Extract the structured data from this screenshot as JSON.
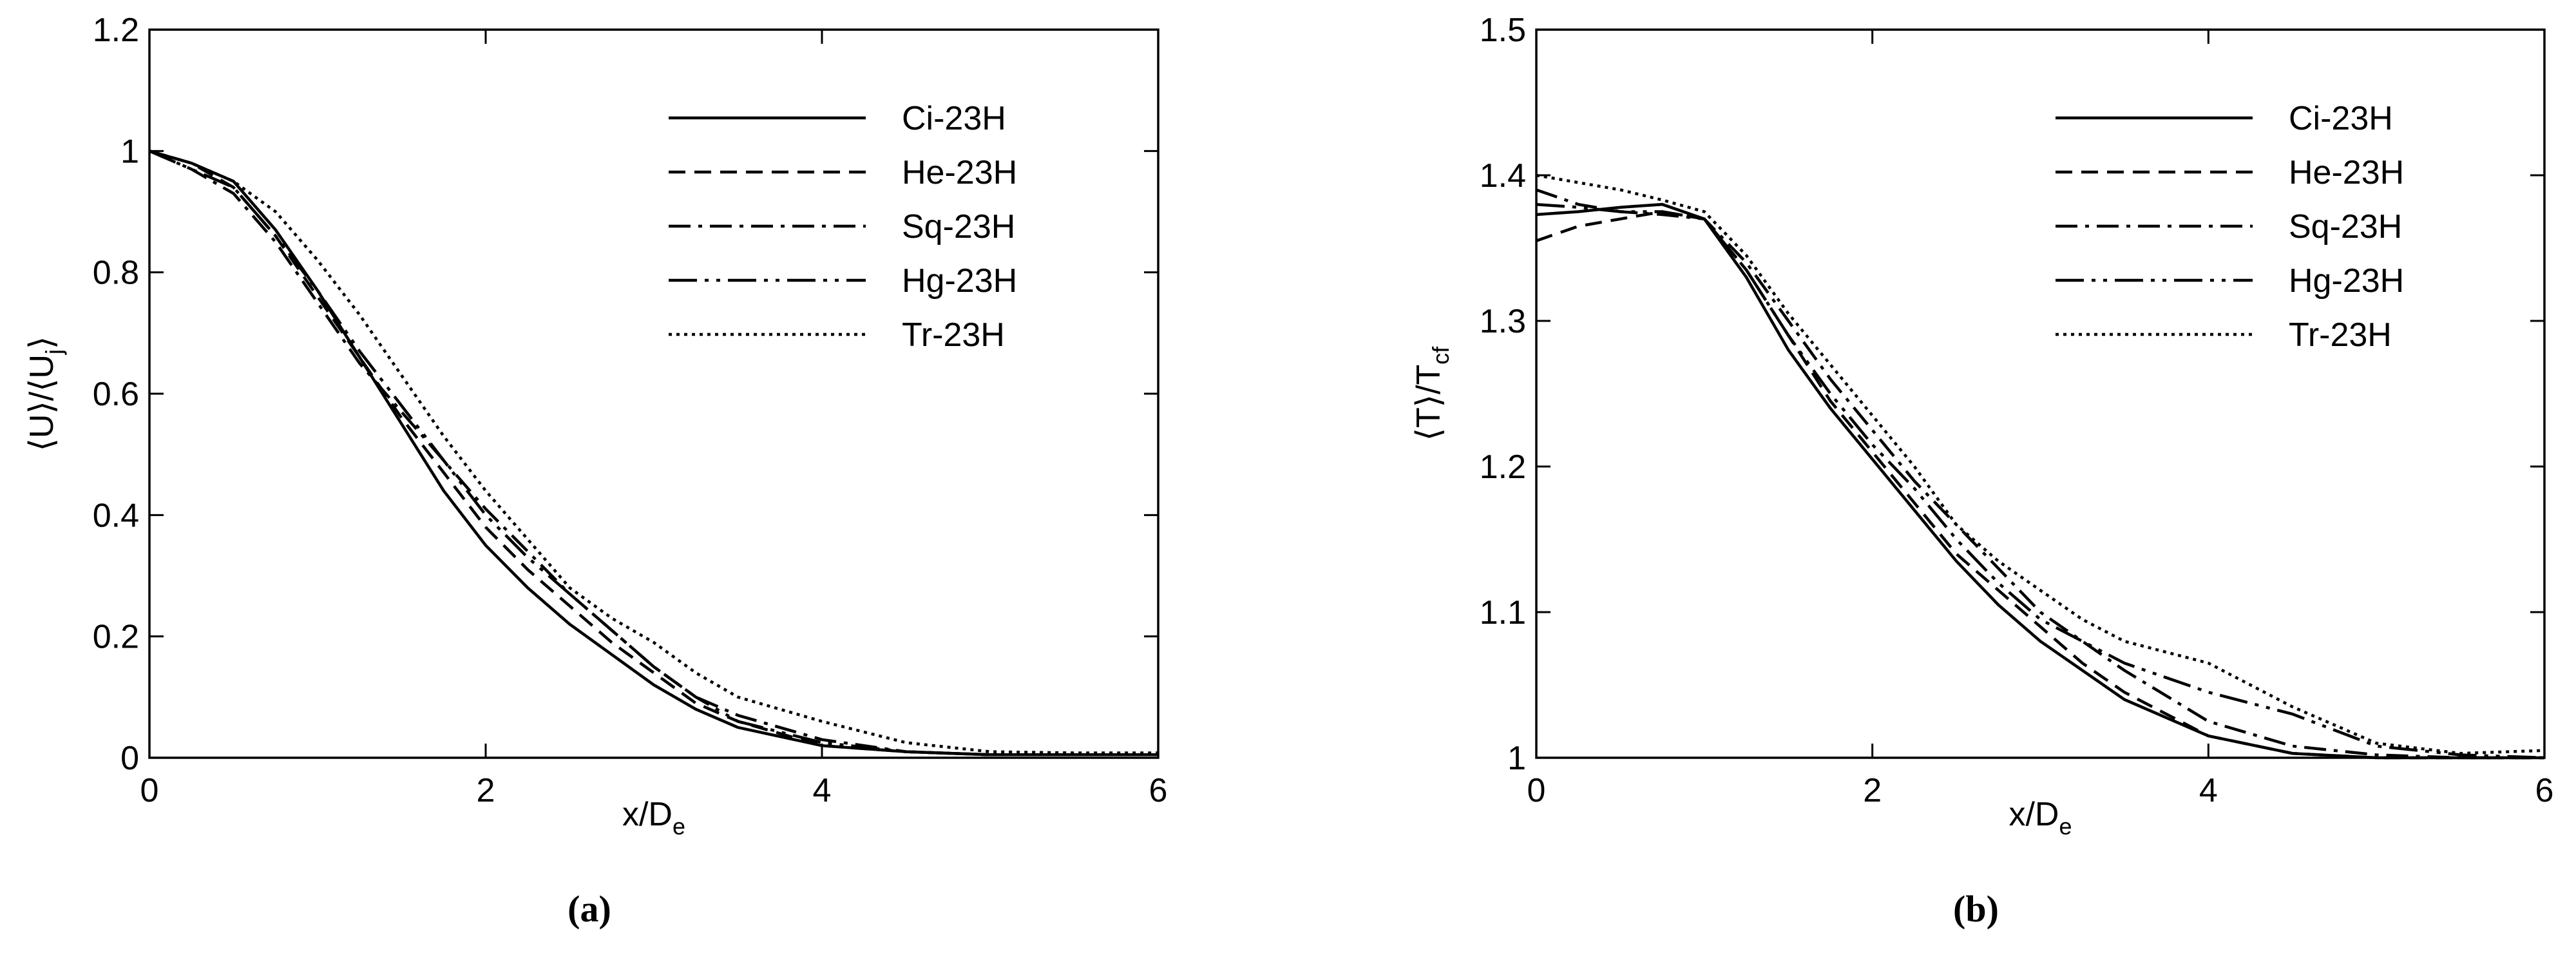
{
  "chart_data": [
    {
      "type": "line",
      "caption": "(a)",
      "xlabel": [
        {
          "text": "x/D"
        },
        {
          "text": "e",
          "sub": true
        }
      ],
      "ylabel": [
        {
          "text": "⟨U⟩/⟨U"
        },
        {
          "text": "j",
          "sub": true
        },
        {
          "text": "⟩"
        }
      ],
      "xlim": [
        0,
        6
      ],
      "xticks": [
        0,
        2,
        4,
        6
      ],
      "ylim": [
        0,
        1.2
      ],
      "yticks": [
        0,
        0.2,
        0.4,
        0.6,
        0.8,
        1,
        1.2
      ],
      "legend": "top-right",
      "x": [
        0,
        0.25,
        0.5,
        0.75,
        1,
        1.25,
        1.5,
        1.75,
        2,
        2.25,
        2.5,
        2.75,
        3,
        3.25,
        3.5,
        4,
        4.5,
        5,
        5.5,
        6
      ],
      "series": [
        {
          "name": "Ci-23H",
          "color": "#000000",
          "dash": "solid",
          "values": [
            1,
            0.98,
            0.95,
            0.87,
            0.77,
            0.66,
            0.55,
            0.44,
            0.35,
            0.28,
            0.22,
            0.17,
            0.12,
            0.08,
            0.05,
            0.02,
            0.01,
            0.005,
            0.005,
            0.005
          ]
        },
        {
          "name": "He-23H",
          "color": "#000000",
          "dash": "dashed",
          "values": [
            1,
            0.98,
            0.94,
            0.86,
            0.76,
            0.66,
            0.56,
            0.47,
            0.38,
            0.31,
            0.25,
            0.19,
            0.14,
            0.09,
            0.06,
            0.02,
            0.01,
            0.005,
            0.005,
            0.005
          ]
        },
        {
          "name": "Sq-23H",
          "color": "#000000",
          "dash": "dash-dot",
          "values": [
            1,
            0.97,
            0.93,
            0.85,
            0.75,
            0.65,
            0.57,
            0.49,
            0.41,
            0.34,
            0.27,
            0.21,
            0.15,
            0.1,
            0.07,
            0.03,
            0.01,
            0.005,
            0.005,
            0.005
          ]
        },
        {
          "name": "Hg-23H",
          "color": "#000000",
          "dash": "dash-dot-dot",
          "values": [
            1,
            0.97,
            0.94,
            0.86,
            0.77,
            0.67,
            0.58,
            0.49,
            0.4,
            0.33,
            0.27,
            0.21,
            0.15,
            0.1,
            0.06,
            0.025,
            0.01,
            0.005,
            0.005,
            0.005
          ]
        },
        {
          "name": "Tr-23H",
          "color": "#000000",
          "dash": "dotted",
          "values": [
            1,
            0.98,
            0.95,
            0.9,
            0.82,
            0.73,
            0.63,
            0.53,
            0.44,
            0.36,
            0.28,
            0.23,
            0.19,
            0.14,
            0.1,
            0.06,
            0.025,
            0.01,
            0.008,
            0.008
          ]
        }
      ]
    },
    {
      "type": "line",
      "caption": "(b)",
      "xlabel": [
        {
          "text": "x/D"
        },
        {
          "text": "e",
          "sub": true
        }
      ],
      "ylabel": [
        {
          "text": "⟨T⟩/T"
        },
        {
          "text": "cf",
          "sub": true
        }
      ],
      "xlim": [
        0,
        6
      ],
      "xticks": [
        0,
        2,
        4,
        6
      ],
      "ylim": [
        1,
        1.5
      ],
      "yticks": [
        1,
        1.1,
        1.2,
        1.3,
        1.4,
        1.5
      ],
      "legend": "top-right",
      "x": [
        0,
        0.25,
        0.5,
        0.75,
        1,
        1.25,
        1.5,
        1.75,
        2,
        2.25,
        2.5,
        2.75,
        3,
        3.25,
        3.5,
        4,
        4.5,
        5,
        5.5,
        6
      ],
      "series": [
        {
          "name": "Ci-23H",
          "color": "#000000",
          "dash": "solid",
          "values": [
            1.373,
            1.375,
            1.378,
            1.38,
            1.37,
            1.33,
            1.28,
            1.24,
            1.205,
            1.17,
            1.135,
            1.105,
            1.08,
            1.06,
            1.04,
            1.015,
            1.003,
            1,
            1,
            1
          ]
        },
        {
          "name": "He-23H",
          "color": "#000000",
          "dash": "dashed",
          "values": [
            1.355,
            1.365,
            1.37,
            1.375,
            1.37,
            1.335,
            1.29,
            1.245,
            1.21,
            1.175,
            1.14,
            1.115,
            1.09,
            1.065,
            1.045,
            1.015,
            1.003,
            1,
            1,
            1
          ]
        },
        {
          "name": "Sq-23H",
          "color": "#000000",
          "dash": "dash-dot",
          "values": [
            1.39,
            1.38,
            1.375,
            1.373,
            1.37,
            1.34,
            1.3,
            1.26,
            1.225,
            1.19,
            1.16,
            1.13,
            1.1,
            1.08,
            1.06,
            1.025,
            1.008,
            1.002,
            1,
            1
          ]
        },
        {
          "name": "Hg-23H",
          "color": "#000000",
          "dash": "dash-dot-dot",
          "values": [
            1.38,
            1.378,
            1.375,
            1.375,
            1.37,
            1.335,
            1.29,
            1.25,
            1.215,
            1.185,
            1.15,
            1.12,
            1.095,
            1.08,
            1.065,
            1.045,
            1.03,
            1.008,
            1.002,
            1
          ]
        },
        {
          "name": "Tr-23H",
          "color": "#000000",
          "dash": "dotted",
          "values": [
            1.4,
            1.395,
            1.39,
            1.383,
            1.375,
            1.345,
            1.305,
            1.27,
            1.235,
            1.2,
            1.16,
            1.135,
            1.115,
            1.095,
            1.08,
            1.065,
            1.035,
            1.01,
            1.003,
            1.005
          ]
        }
      ]
    }
  ]
}
